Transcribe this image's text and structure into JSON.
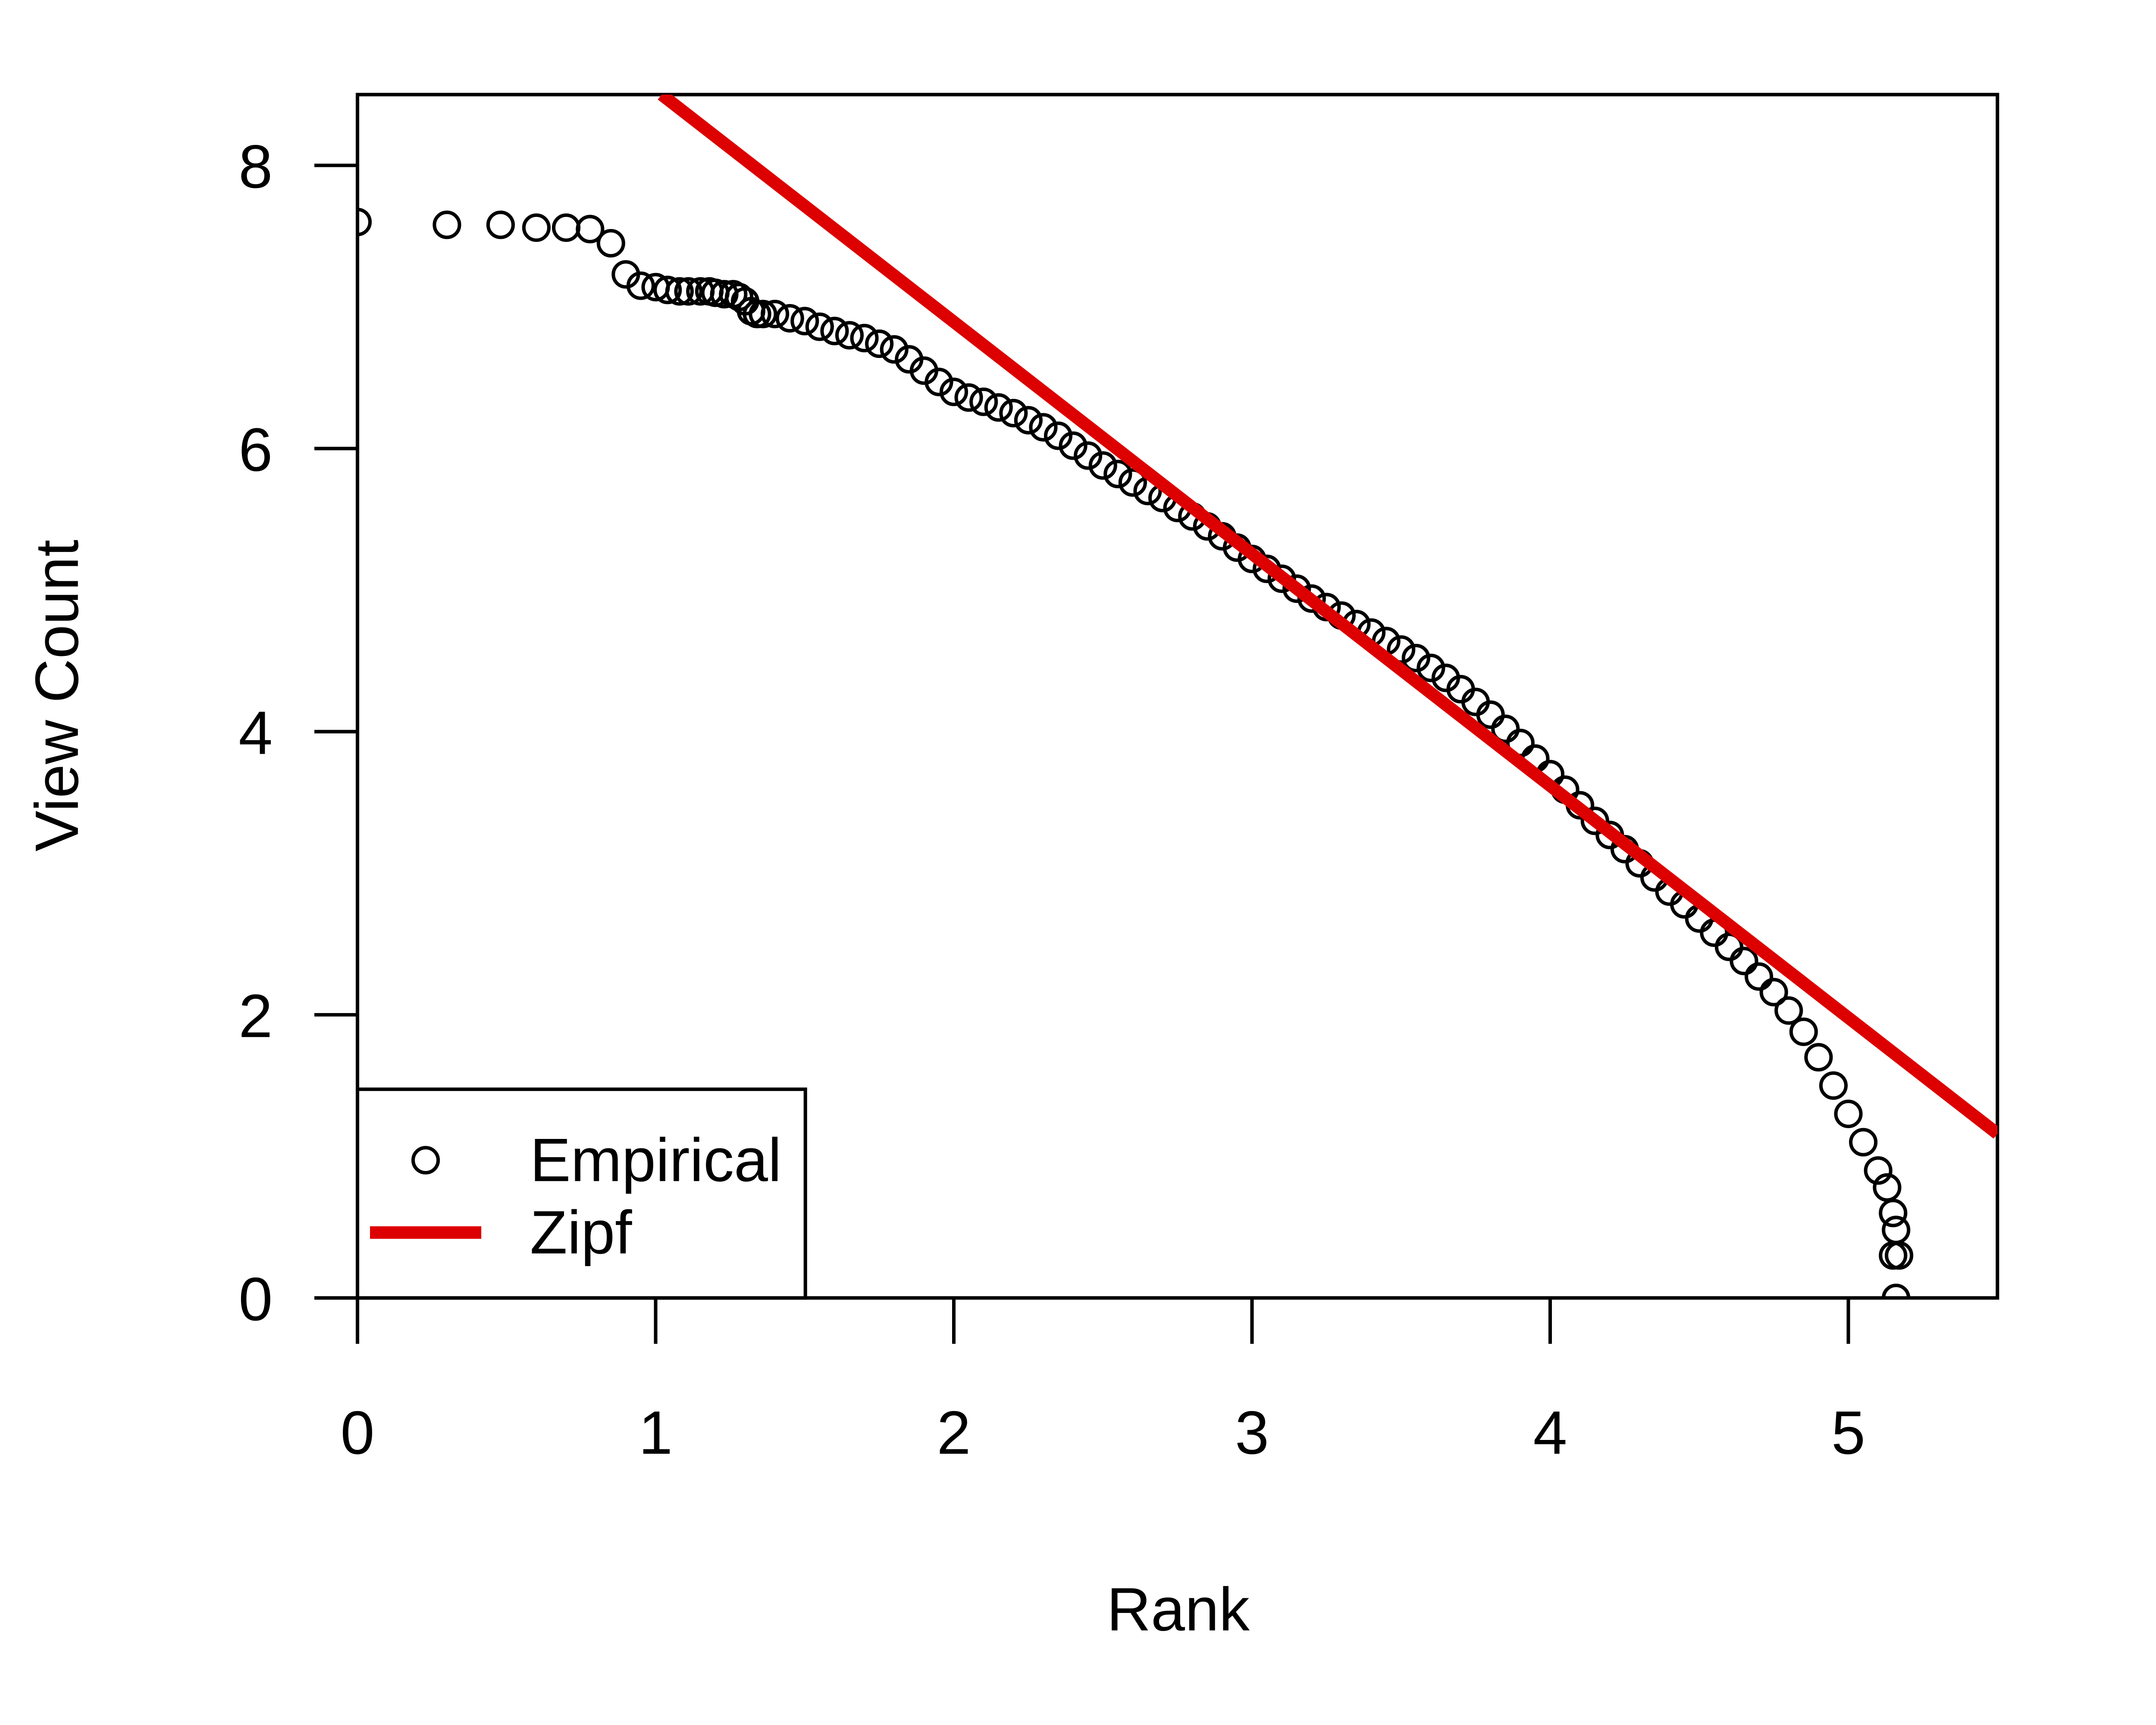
{
  "chart_data": {
    "type": "scatter",
    "x_label": "Rank",
    "y_label": "View Count",
    "xlim": [
      0,
      5.5
    ],
    "ylim": [
      0,
      8.5
    ],
    "xticks": [
      0,
      1,
      2,
      3,
      4,
      5
    ],
    "yticks": [
      0,
      2,
      4,
      6,
      8
    ],
    "legend": "bottomleft",
    "series": [
      {
        "name": "Empirical",
        "type": "scatter",
        "color": "#000000",
        "x": [
          0,
          0.3,
          0.48,
          0.6,
          0.7,
          0.78,
          0.85,
          0.9,
          0.95,
          1.0,
          1.04,
          1.08,
          1.11,
          1.15,
          1.18,
          1.2,
          1.23,
          1.26,
          1.28,
          1.3,
          1.32,
          1.34,
          1.36,
          1.4,
          1.45,
          1.5,
          1.55,
          1.6,
          1.65,
          1.7,
          1.75,
          1.8,
          1.85,
          1.9,
          1.95,
          2.0,
          2.05,
          2.1,
          2.15,
          2.2,
          2.25,
          2.3,
          2.35,
          2.4,
          2.45,
          2.5,
          2.55,
          2.6,
          2.65,
          2.7,
          2.75,
          2.8,
          2.85,
          2.9,
          2.95,
          3.0,
          3.05,
          3.1,
          3.15,
          3.2,
          3.25,
          3.3,
          3.35,
          3.4,
          3.45,
          3.5,
          3.55,
          3.6,
          3.65,
          3.7,
          3.75,
          3.8,
          3.85,
          3.9,
          3.95,
          4.0,
          4.05,
          4.1,
          4.15,
          4.2,
          4.25,
          4.3,
          4.35,
          4.4,
          4.45,
          4.5,
          4.55,
          4.6,
          4.65,
          4.7,
          4.75,
          4.8,
          4.85,
          4.9,
          4.95,
          5.0,
          5.05,
          5.1,
          5.13,
          5.15,
          5.16,
          5.15,
          5.17,
          5.16
        ],
        "values": [
          7.6,
          7.58,
          7.58,
          7.56,
          7.56,
          7.55,
          7.45,
          7.23,
          7.15,
          7.14,
          7.12,
          7.11,
          7.11,
          7.11,
          7.11,
          7.1,
          7.09,
          7.09,
          7.07,
          7.04,
          6.97,
          6.95,
          6.95,
          6.95,
          6.92,
          6.9,
          6.86,
          6.83,
          6.8,
          6.78,
          6.74,
          6.7,
          6.63,
          6.55,
          6.47,
          6.4,
          6.36,
          6.33,
          6.29,
          6.25,
          6.2,
          6.15,
          6.09,
          6.02,
          5.95,
          5.88,
          5.82,
          5.76,
          5.7,
          5.65,
          5.58,
          5.52,
          5.45,
          5.38,
          5.3,
          5.22,
          5.15,
          5.08,
          5.01,
          4.94,
          4.88,
          4.82,
          4.76,
          4.7,
          4.64,
          4.58,
          4.52,
          4.45,
          4.38,
          4.3,
          4.21,
          4.12,
          4.02,
          3.92,
          3.81,
          3.7,
          3.59,
          3.48,
          3.37,
          3.27,
          3.17,
          3.07,
          2.97,
          2.87,
          2.78,
          2.68,
          2.58,
          2.48,
          2.38,
          2.27,
          2.16,
          2.03,
          1.88,
          1.7,
          1.5,
          1.3,
          1.1,
          0.9,
          0.78,
          0.6,
          0.48,
          0.3,
          0.3,
          0
        ]
      },
      {
        "name": "Zipf",
        "type": "line",
        "color": "#dd0000",
        "x": [
          1.02,
          5.5
        ],
        "values": [
          8.5,
          1.16
        ]
      }
    ]
  }
}
